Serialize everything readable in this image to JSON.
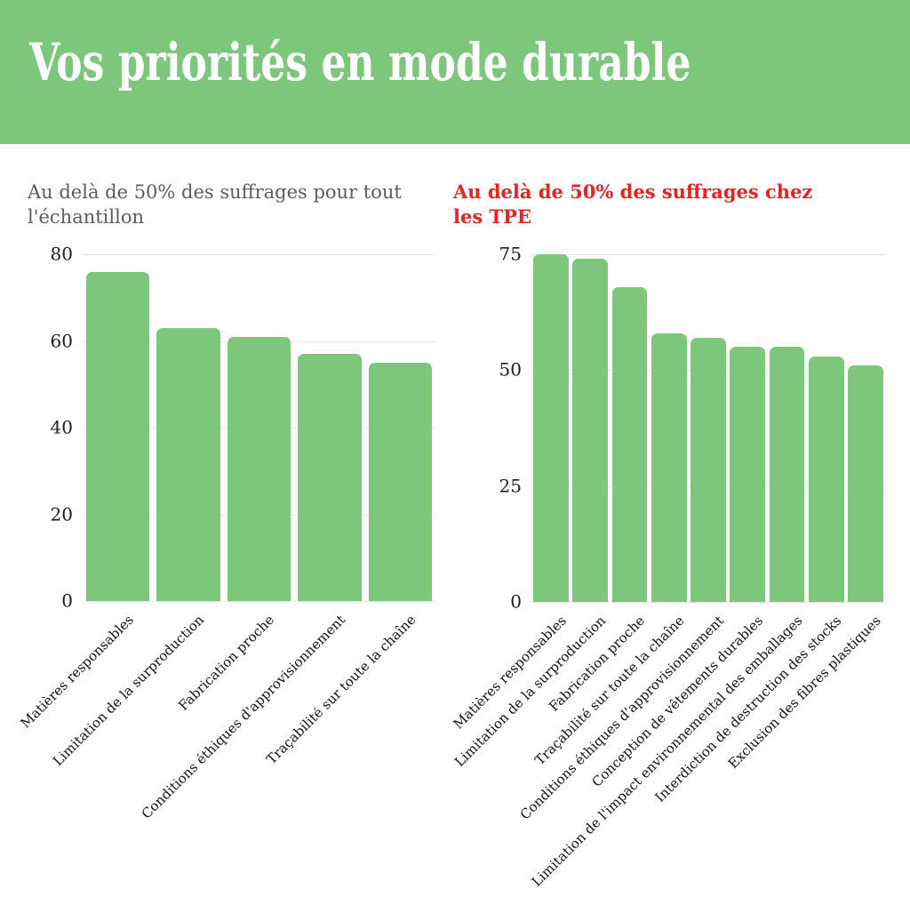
{
  "header": {
    "title": "Vos priorités en mode durable",
    "background": "#7cc77b",
    "text_color": "#ffffff"
  },
  "chart_data": [
    {
      "type": "bar",
      "title": "Au delà de 50% des suffrages pour tout l'échantillon",
      "title_color": "#5c5c5c",
      "categories": [
        "Matières responsables",
        "Limitation de la surproduction",
        "Fabrication proche",
        "Conditions éthiques d'approvisionnement",
        "Traçabilité sur toute la chaîne"
      ],
      "values": [
        76,
        63,
        61,
        57,
        55
      ],
      "yticks": [
        0,
        20,
        40,
        60,
        80
      ],
      "ylim": [
        0,
        80
      ],
      "bar_color": "#7cc77b",
      "grid": true,
      "legend": false,
      "xlabel": "",
      "ylabel": ""
    },
    {
      "type": "bar",
      "title": "Au delà de 50% des suffrages chez les TPE",
      "title_color": "#e82321",
      "categories": [
        "Matières responsables",
        "Limitation de la surproduction",
        "Fabrication proche",
        "Traçabilité sur toute la chaîne",
        "Conditions éthiques d'approvisionnement",
        "Conception de vêtements durables",
        "Limitation de l'impact environnemental des emballages",
        "Interdiction de destruction des stocks",
        "Exclusion des fibres plastiques"
      ],
      "values": [
        75,
        74,
        68,
        58,
        57,
        55,
        55,
        53,
        51
      ],
      "yticks": [
        0,
        25,
        50,
        75
      ],
      "ylim": [
        0,
        75
      ],
      "bar_color": "#7cc77b",
      "grid": true,
      "legend": false,
      "xlabel": "",
      "ylabel": ""
    }
  ]
}
